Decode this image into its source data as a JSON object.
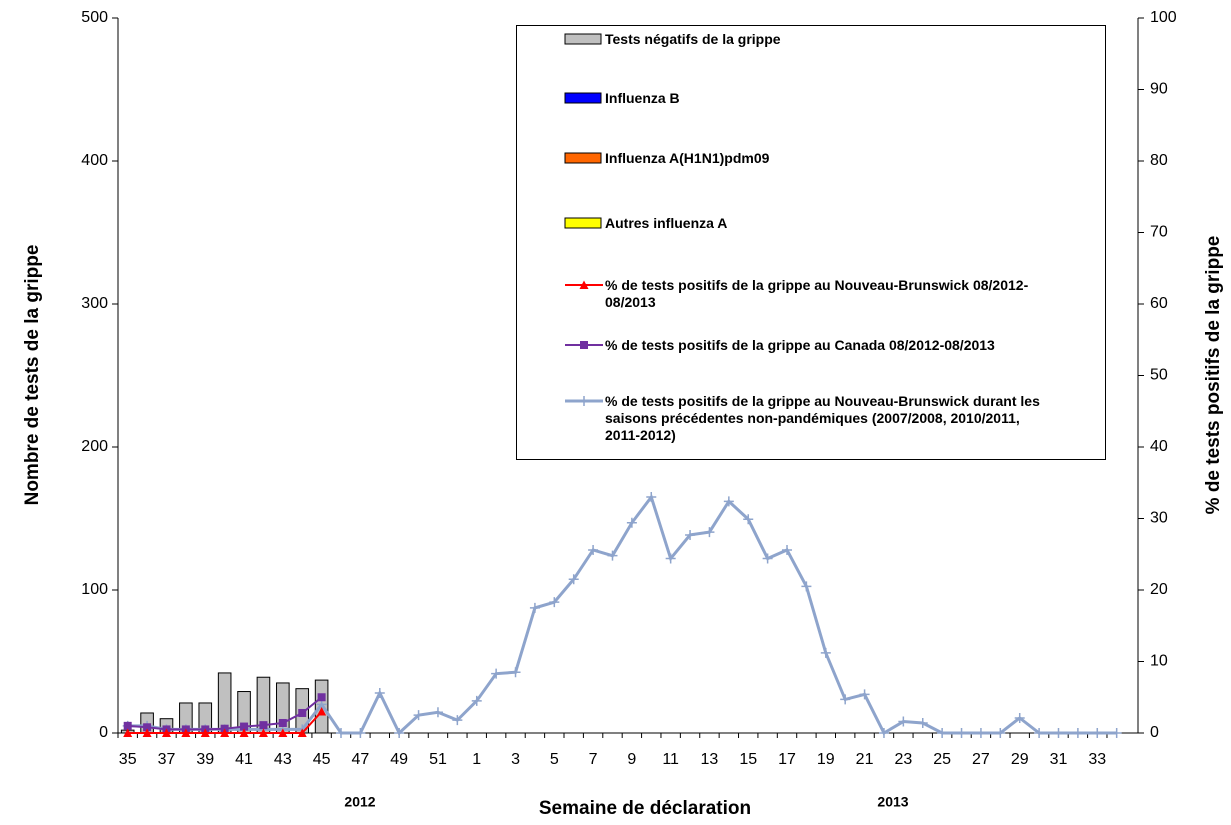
{
  "chart_data": {
    "type": "bar",
    "y_label": "Nombre de tests de la grippe",
    "y2_label": "% de tests positifs de la grippe",
    "x_label": "Semaine de déclaration",
    "annotations": [
      "2012",
      "2013"
    ],
    "categories": [
      "35",
      null,
      "37",
      null,
      "39",
      null,
      "41",
      null,
      "43",
      null,
      "45",
      null,
      "47",
      null,
      "49",
      null,
      "51",
      null,
      "1",
      null,
      "3",
      null,
      "5",
      null,
      "7",
      null,
      "9",
      null,
      "11",
      null,
      "13",
      null,
      "15",
      null,
      "17",
      null,
      "19",
      null,
      "21",
      null,
      "23",
      null,
      "25",
      null,
      "27",
      null,
      "29",
      null,
      "31",
      null,
      "33",
      null
    ],
    "ylim": [
      0,
      500
    ],
    "yticks": [
      0,
      100,
      200,
      300,
      400,
      500
    ],
    "y2lim": [
      0,
      100
    ],
    "y2ticks": [
      0,
      10,
      20,
      30,
      40,
      50,
      60,
      70,
      80,
      90,
      100
    ],
    "series": [
      {
        "name": "Tests négatifs de la grippe",
        "type": "bar",
        "color": "#c0c0c0",
        "values": [
          2,
          14,
          10,
          21,
          21,
          42,
          29,
          39,
          35,
          31,
          37,
          null,
          null,
          null,
          null,
          null,
          null,
          null,
          null,
          null,
          null,
          null,
          null,
          null,
          null,
          null,
          null,
          null,
          null,
          null,
          null,
          null,
          null,
          null,
          null,
          null,
          null,
          null,
          null,
          null,
          null,
          null,
          null,
          null,
          null,
          null,
          null,
          null,
          null,
          null,
          null,
          null
        ]
      },
      {
        "name": "Influenza B",
        "type": "bar",
        "color": "#0000ff",
        "values": [
          0,
          0,
          0,
          0,
          0,
          0,
          0,
          0,
          0,
          0,
          0,
          null,
          null,
          null,
          null,
          null,
          null,
          null,
          null,
          null,
          null,
          null,
          null,
          null,
          null,
          null,
          null,
          null,
          null,
          null,
          null,
          null,
          null,
          null,
          null,
          null,
          null,
          null,
          null,
          null,
          null,
          null,
          null,
          null,
          null,
          null,
          null,
          null,
          null,
          null,
          null,
          null
        ]
      },
      {
        "name": "Influenza A(H1N1)pdm09",
        "type": "bar",
        "color": "#ff6600",
        "values": [
          0,
          0,
          0,
          0,
          0,
          0,
          0,
          0,
          0,
          0,
          0,
          null,
          null,
          null,
          null,
          null,
          null,
          null,
          null,
          null,
          null,
          null,
          null,
          null,
          null,
          null,
          null,
          null,
          null,
          null,
          null,
          null,
          null,
          null,
          null,
          null,
          null,
          null,
          null,
          null,
          null,
          null,
          null,
          null,
          null,
          null,
          null,
          null,
          null,
          null,
          null,
          null
        ]
      },
      {
        "name": "Autres influenza A",
        "type": "bar",
        "color": "#ffff00",
        "values": [
          0,
          0,
          0,
          0,
          0,
          0,
          0,
          0,
          0,
          0,
          0,
          null,
          null,
          null,
          null,
          null,
          null,
          null,
          null,
          null,
          null,
          null,
          null,
          null,
          null,
          null,
          null,
          null,
          null,
          null,
          null,
          null,
          null,
          null,
          null,
          null,
          null,
          null,
          null,
          null,
          null,
          null,
          null,
          null,
          null,
          null,
          null,
          null,
          null,
          null,
          null,
          null
        ]
      },
      {
        "name": "% de tests positifs de la grippe  au Nouveau-Brunswick 08/2012-08/2013",
        "type": "line",
        "axis": "y2",
        "marker": "triangle",
        "color": "#ff0000",
        "values": [
          0,
          0,
          0,
          0,
          0,
          0,
          0,
          0,
          0,
          0,
          3,
          null,
          null,
          null,
          null,
          null,
          null,
          null,
          null,
          null,
          null,
          null,
          null,
          null,
          null,
          null,
          null,
          null,
          null,
          null,
          null,
          null,
          null,
          null,
          null,
          null,
          null,
          null,
          null,
          null,
          null,
          null,
          null,
          null,
          null,
          null,
          null,
          null,
          null,
          null,
          null,
          null
        ]
      },
      {
        "name": "% de tests  positifs de la grippe  au Canada 08/2012-08/2013",
        "type": "line",
        "axis": "y2",
        "marker": "square",
        "color": "#7030a0",
        "values": [
          1,
          0.8,
          0.5,
          0.5,
          0.5,
          0.6,
          0.9,
          1.1,
          1.4,
          2.8,
          5,
          null,
          null,
          null,
          null,
          null,
          null,
          null,
          null,
          null,
          null,
          null,
          null,
          null,
          null,
          null,
          null,
          null,
          null,
          null,
          null,
          null,
          null,
          null,
          null,
          null,
          null,
          null,
          null,
          null,
          null,
          null,
          null,
          null,
          null,
          null,
          null,
          null,
          null,
          null,
          null,
          null
        ]
      },
      {
        "name": "% de tests positifs de la grippe  au Nouveau-Brunswick durant les saisons précédentes non-pandémiques (2007/2008,  2010/2011,  2011-2012)",
        "type": "line",
        "axis": "y2",
        "marker": "plus",
        "color": "#8eA4cc",
        "values": [
          1,
          1,
          0.5,
          0.5,
          0.5,
          0.5,
          0.5,
          0.5,
          0.5,
          0.5,
          4,
          0,
          0,
          5.6,
          0,
          2.5,
          2.9,
          1.8,
          4.5,
          8.3,
          8.5,
          17.5,
          18.3,
          21.5,
          25.6,
          24.8,
          29.4,
          33,
          24.4,
          27.7,
          28.1,
          32.4,
          29.9,
          24.4,
          25.6,
          20.5,
          11.2,
          4.7,
          5.4,
          0,
          1.6,
          1.4,
          0,
          0,
          0,
          0,
          2.1,
          0,
          0,
          0,
          0,
          0
        ]
      }
    ]
  }
}
